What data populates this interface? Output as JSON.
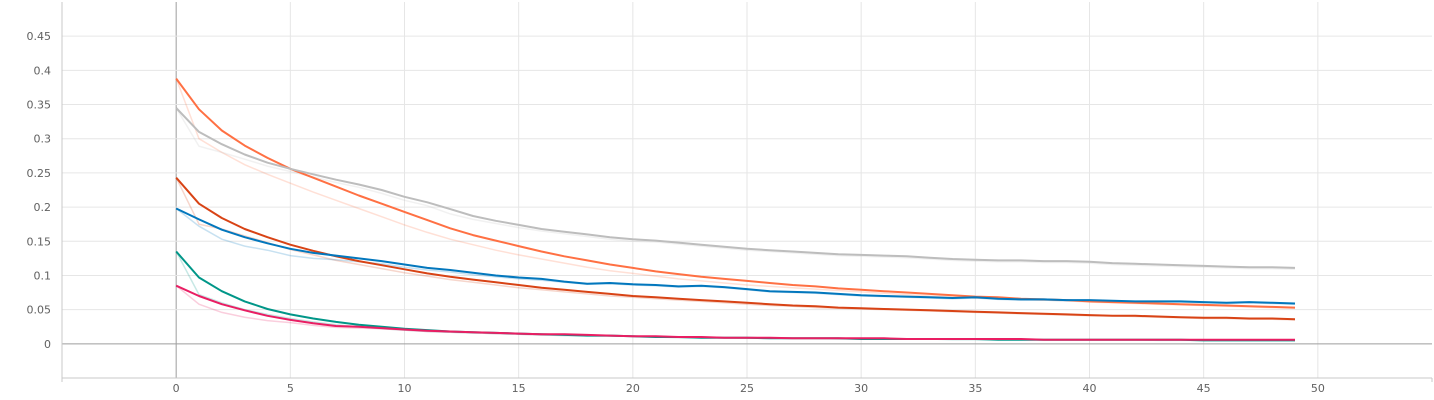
{
  "chart_data": {
    "type": "line",
    "title": "",
    "xlabel": "",
    "ylabel": "",
    "xlim": [
      -5,
      55
    ],
    "ylim": [
      -0.05,
      0.5
    ],
    "x_ticks": [
      0,
      5,
      10,
      15,
      20,
      25,
      30,
      35,
      40,
      45,
      50
    ],
    "y_ticks": [
      0,
      0.05,
      0.1,
      0.15,
      0.2,
      0.25,
      0.3,
      0.35,
      0.4,
      0.45
    ],
    "x_tick_labels": [
      "0",
      "5",
      "10",
      "15",
      "20",
      "25",
      "30",
      "35",
      "40",
      "45",
      "50"
    ],
    "y_tick_labels": [
      "0",
      "0.05",
      "0.1",
      "0.15",
      "0.2",
      "0.25",
      "0.3",
      "0.35",
      "0.4",
      "0.45"
    ],
    "grid": true,
    "smoothing_ghost_lines": true,
    "series": [
      {
        "color": "#ff7043",
        "x": [
          0,
          1,
          2,
          3,
          4,
          5,
          6,
          7,
          8,
          9,
          10,
          11,
          12,
          13,
          14,
          15,
          16,
          17,
          18,
          19,
          20,
          21,
          22,
          23,
          24,
          25,
          26,
          27,
          28,
          29,
          30,
          31,
          32,
          33,
          34,
          35,
          36,
          37,
          38,
          39,
          40,
          41,
          42,
          43,
          44,
          45,
          46,
          47,
          48,
          49
        ],
        "values": [
          0.388,
          0.343,
          0.312,
          0.29,
          0.272,
          0.256,
          0.243,
          0.23,
          0.217,
          0.205,
          0.193,
          0.181,
          0.169,
          0.159,
          0.151,
          0.143,
          0.135,
          0.128,
          0.122,
          0.116,
          0.111,
          0.106,
          0.102,
          0.098,
          0.095,
          0.092,
          0.089,
          0.086,
          0.084,
          0.081,
          0.079,
          0.077,
          0.075,
          0.073,
          0.071,
          0.069,
          0.068,
          0.066,
          0.065,
          0.064,
          0.062,
          0.061,
          0.06,
          0.059,
          0.058,
          0.057,
          0.056,
          0.055,
          0.054,
          0.053
        ],
        "ghost": [
          0.388,
          0.3,
          0.28,
          0.262,
          0.248,
          0.235,
          0.222,
          0.21,
          0.198,
          0.186,
          0.174,
          0.163,
          0.153,
          0.145,
          0.137,
          0.13,
          0.124,
          0.118,
          0.112,
          0.107,
          0.103,
          0.099,
          0.095,
          0.092,
          0.089,
          0.086,
          0.084,
          0.082,
          0.08,
          0.078,
          0.076,
          0.074,
          0.072,
          0.07,
          0.069,
          0.067,
          0.066,
          0.065,
          0.064,
          0.063,
          0.061,
          0.06,
          0.059,
          0.058,
          0.057,
          0.056,
          0.055,
          0.054,
          0.053,
          0.052
        ]
      },
      {
        "color": "#bdbdbd",
        "x": [
          0,
          1,
          2,
          3,
          4,
          5,
          6,
          7,
          8,
          9,
          10,
          11,
          12,
          13,
          14,
          15,
          16,
          17,
          18,
          19,
          20,
          21,
          22,
          23,
          24,
          25,
          26,
          27,
          28,
          29,
          30,
          31,
          32,
          33,
          34,
          35,
          36,
          37,
          38,
          39,
          40,
          41,
          42,
          43,
          44,
          45,
          46,
          47,
          48,
          49
        ],
        "values": [
          0.345,
          0.31,
          0.292,
          0.277,
          0.265,
          0.256,
          0.248,
          0.24,
          0.233,
          0.225,
          0.215,
          0.207,
          0.197,
          0.187,
          0.18,
          0.174,
          0.168,
          0.164,
          0.16,
          0.156,
          0.153,
          0.151,
          0.148,
          0.145,
          0.142,
          0.139,
          0.137,
          0.135,
          0.133,
          0.131,
          0.13,
          0.129,
          0.128,
          0.126,
          0.124,
          0.123,
          0.122,
          0.122,
          0.121,
          0.121,
          0.12,
          0.118,
          0.117,
          0.116,
          0.115,
          0.114,
          0.113,
          0.112,
          0.112,
          0.111
        ],
        "ghost": [
          0.345,
          0.289,
          0.28,
          0.27,
          0.26,
          0.252,
          0.244,
          0.236,
          0.229,
          0.22,
          0.21,
          0.202,
          0.19,
          0.182,
          0.176,
          0.17,
          0.165,
          0.161,
          0.157,
          0.153,
          0.15,
          0.149,
          0.146,
          0.143,
          0.14,
          0.137,
          0.135,
          0.133,
          0.131,
          0.129,
          0.128,
          0.127,
          0.126,
          0.124,
          0.122,
          0.121,
          0.12,
          0.12,
          0.119,
          0.119,
          0.118,
          0.116,
          0.115,
          0.114,
          0.113,
          0.112,
          0.111,
          0.11,
          0.11,
          0.109
        ]
      },
      {
        "color": "#d84315",
        "x": [
          0,
          1,
          2,
          3,
          4,
          5,
          6,
          7,
          8,
          9,
          10,
          11,
          12,
          13,
          14,
          15,
          16,
          17,
          18,
          19,
          20,
          21,
          22,
          23,
          24,
          25,
          26,
          27,
          28,
          29,
          30,
          31,
          32,
          33,
          34,
          35,
          36,
          37,
          38,
          39,
          40,
          41,
          42,
          43,
          44,
          45,
          46,
          47,
          48,
          49
        ],
        "values": [
          0.243,
          0.205,
          0.184,
          0.168,
          0.156,
          0.145,
          0.136,
          0.128,
          0.121,
          0.115,
          0.109,
          0.103,
          0.098,
          0.094,
          0.09,
          0.086,
          0.082,
          0.079,
          0.076,
          0.073,
          0.07,
          0.068,
          0.066,
          0.064,
          0.062,
          0.06,
          0.058,
          0.056,
          0.055,
          0.053,
          0.052,
          0.051,
          0.05,
          0.049,
          0.048,
          0.047,
          0.046,
          0.045,
          0.044,
          0.043,
          0.042,
          0.041,
          0.041,
          0.04,
          0.039,
          0.038,
          0.038,
          0.037,
          0.037,
          0.036
        ],
        "ghost": [
          0.243,
          0.175,
          0.168,
          0.158,
          0.148,
          0.138,
          0.13,
          0.122,
          0.116,
          0.11,
          0.104,
          0.099,
          0.094,
          0.09,
          0.086,
          0.082,
          0.079,
          0.076,
          0.073,
          0.07,
          0.068,
          0.066,
          0.064,
          0.062,
          0.06,
          0.058,
          0.056,
          0.055,
          0.053,
          0.052,
          0.051,
          0.05,
          0.049,
          0.048,
          0.047,
          0.046,
          0.045,
          0.044,
          0.043,
          0.042,
          0.041,
          0.041,
          0.04,
          0.039,
          0.038,
          0.037,
          0.037,
          0.036,
          0.036,
          0.035
        ]
      },
      {
        "color": "#0277bd",
        "x": [
          0,
          1,
          2,
          3,
          4,
          5,
          6,
          7,
          8,
          9,
          10,
          11,
          12,
          13,
          14,
          15,
          16,
          17,
          18,
          19,
          20,
          21,
          22,
          23,
          24,
          25,
          26,
          27,
          28,
          29,
          30,
          31,
          32,
          33,
          34,
          35,
          36,
          37,
          38,
          39,
          40,
          41,
          42,
          43,
          44,
          45,
          46,
          47,
          48,
          49
        ],
        "values": [
          0.198,
          0.182,
          0.167,
          0.156,
          0.147,
          0.139,
          0.133,
          0.129,
          0.125,
          0.121,
          0.116,
          0.111,
          0.108,
          0.104,
          0.1,
          0.097,
          0.095,
          0.091,
          0.088,
          0.089,
          0.087,
          0.086,
          0.084,
          0.085,
          0.083,
          0.08,
          0.077,
          0.076,
          0.075,
          0.073,
          0.071,
          0.07,
          0.069,
          0.068,
          0.067,
          0.068,
          0.066,
          0.065,
          0.065,
          0.064,
          0.064,
          0.063,
          0.062,
          0.062,
          0.062,
          0.061,
          0.06,
          0.061,
          0.06,
          0.059
        ],
        "ghost": [
          0.198,
          0.172,
          0.153,
          0.143,
          0.137,
          0.129,
          0.125,
          0.123,
          0.12,
          0.117,
          0.112,
          0.108,
          0.105,
          0.101,
          0.098,
          0.095,
          0.093,
          0.09,
          0.087,
          0.088,
          0.086,
          0.085,
          0.083,
          0.084,
          0.082,
          0.079,
          0.076,
          0.075,
          0.074,
          0.072,
          0.07,
          0.069,
          0.068,
          0.067,
          0.066,
          0.067,
          0.065,
          0.064,
          0.064,
          0.063,
          0.063,
          0.062,
          0.061,
          0.061,
          0.061,
          0.06,
          0.059,
          0.06,
          0.059,
          0.058
        ]
      },
      {
        "color": "#009688",
        "x": [
          0,
          1,
          2,
          3,
          4,
          5,
          6,
          7,
          8,
          9,
          10,
          11,
          12,
          13,
          14,
          15,
          16,
          17,
          18,
          19,
          20,
          21,
          22,
          23,
          24,
          25,
          26,
          27,
          28,
          29,
          30,
          31,
          32,
          33,
          34,
          35,
          36,
          37,
          38,
          39,
          40,
          41,
          42,
          43,
          44,
          45,
          46,
          47,
          48,
          49
        ],
        "values": [
          0.135,
          0.097,
          0.077,
          0.062,
          0.051,
          0.043,
          0.037,
          0.032,
          0.028,
          0.025,
          0.022,
          0.02,
          0.018,
          0.017,
          0.016,
          0.015,
          0.014,
          0.013,
          0.012,
          0.012,
          0.011,
          0.01,
          0.01,
          0.009,
          0.009,
          0.009,
          0.008,
          0.008,
          0.008,
          0.008,
          0.007,
          0.007,
          0.007,
          0.007,
          0.007,
          0.007,
          0.006,
          0.006,
          0.006,
          0.006,
          0.006,
          0.006,
          0.006,
          0.006,
          0.006,
          0.005,
          0.005,
          0.005,
          0.005,
          0.005
        ],
        "ghost": [
          0.135,
          0.072,
          0.06,
          0.05,
          0.043,
          0.037,
          0.032,
          0.028,
          0.025,
          0.022,
          0.02,
          0.018,
          0.017,
          0.016,
          0.015,
          0.014,
          0.013,
          0.012,
          0.012,
          0.011,
          0.011,
          0.01,
          0.009,
          0.009,
          0.009,
          0.008,
          0.008,
          0.008,
          0.008,
          0.007,
          0.007,
          0.007,
          0.007,
          0.007,
          0.006,
          0.006,
          0.006,
          0.006,
          0.006,
          0.006,
          0.006,
          0.006,
          0.006,
          0.005,
          0.005,
          0.005,
          0.005,
          0.005,
          0.005,
          0.005
        ]
      },
      {
        "color": "#e91e63",
        "x": [
          0,
          1,
          2,
          3,
          4,
          5,
          6,
          7,
          8,
          9,
          10,
          11,
          12,
          13,
          14,
          15,
          16,
          17,
          18,
          19,
          20,
          21,
          22,
          23,
          24,
          25,
          26,
          27,
          28,
          29,
          30,
          31,
          32,
          33,
          34,
          35,
          36,
          37,
          38,
          39,
          40,
          41,
          42,
          43,
          44,
          45,
          46,
          47,
          48,
          49
        ],
        "values": [
          0.085,
          0.07,
          0.058,
          0.049,
          0.041,
          0.035,
          0.03,
          0.026,
          0.025,
          0.023,
          0.021,
          0.019,
          0.018,
          0.017,
          0.016,
          0.015,
          0.014,
          0.014,
          0.013,
          0.012,
          0.011,
          0.011,
          0.01,
          0.01,
          0.009,
          0.009,
          0.009,
          0.008,
          0.008,
          0.008,
          0.008,
          0.008,
          0.007,
          0.007,
          0.007,
          0.007,
          0.007,
          0.007,
          0.006,
          0.006,
          0.006,
          0.006,
          0.006,
          0.006,
          0.006,
          0.006,
          0.006,
          0.006,
          0.006,
          0.006
        ],
        "ghost": [
          0.085,
          0.058,
          0.046,
          0.039,
          0.034,
          0.031,
          0.027,
          0.024,
          0.023,
          0.022,
          0.02,
          0.018,
          0.017,
          0.016,
          0.015,
          0.014,
          0.013,
          0.013,
          0.012,
          0.012,
          0.011,
          0.011,
          0.01,
          0.01,
          0.009,
          0.009,
          0.009,
          0.008,
          0.008,
          0.008,
          0.008,
          0.007,
          0.007,
          0.007,
          0.007,
          0.007,
          0.007,
          0.006,
          0.006,
          0.006,
          0.006,
          0.006,
          0.006,
          0.006,
          0.006,
          0.006,
          0.006,
          0.006,
          0.006,
          0.005
        ]
      }
    ]
  }
}
